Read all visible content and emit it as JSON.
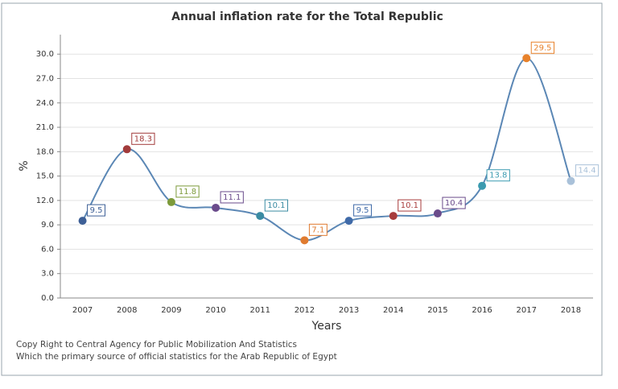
{
  "chart_data": {
    "type": "line",
    "title": "Annual inflation rate for the Total Republic",
    "x_label": "Years",
    "y_label": "%",
    "categories": [
      "2007",
      "2008",
      "2009",
      "2010",
      "2011",
      "2012",
      "2013",
      "2014",
      "2015",
      "2016",
      "2017",
      "2018"
    ],
    "series": [
      {
        "color": "#5b87b5",
        "values": [
          9.5,
          18.3,
          11.8,
          11.1,
          10.1,
          7.1,
          9.5,
          10.1,
          10.4,
          13.8,
          29.5,
          14.4
        ],
        "point_colors": [
          "#3d5f96",
          "#a23b3b",
          "#7c9a3a",
          "#6a4b8b",
          "#3a8ba3",
          "#e07b30",
          "#3f6aa8",
          "#a83c3c",
          "#6a4b8b",
          "#3b9bb0",
          "#e8822b",
          "#a9c1d9"
        ]
      }
    ],
    "ylim": [
      0,
      32.4
    ],
    "yticks": [
      {
        "value": 0,
        "label": "0.0"
      },
      {
        "value": 3,
        "label": "3.0"
      },
      {
        "value": 6,
        "label": "6.0"
      },
      {
        "value": 9,
        "label": "9.0"
      },
      {
        "value": 12,
        "label": "12.0"
      },
      {
        "value": 15,
        "label": "15.0"
      },
      {
        "value": 18,
        "label": "18.0"
      },
      {
        "value": 21,
        "label": "21.0"
      },
      {
        "value": 24,
        "label": "24.0"
      },
      {
        "value": 27,
        "label": "27.0"
      },
      {
        "value": 30,
        "label": "30.0"
      }
    ],
    "grid": true,
    "footnotes": [
      "Copy Right to Central Agency for Public Mobilization And Statistics",
      "Which the primary source of official statistics for the Arab Republic of Egypt"
    ]
  }
}
